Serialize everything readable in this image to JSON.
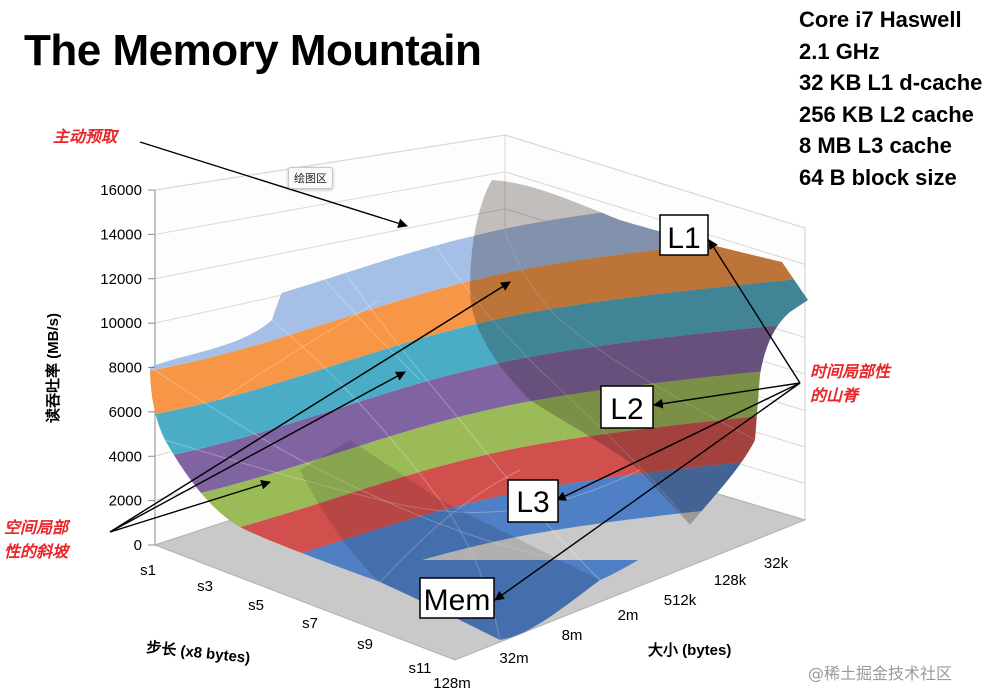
{
  "slide": {
    "title": "The Memory Mountain",
    "specs": [
      "Core i7 Haswell",
      "2.1 GHz",
      "32 KB L1 d-cache",
      "256 KB L2 cache",
      "8 MB L3 cache",
      "64 B block size"
    ],
    "tooltip": "绘图区",
    "watermark": "@稀土掘金技术社区"
  },
  "chart_data": {
    "type": "surface-3d",
    "title": "",
    "ylabel": "读吞吐率 (MB/s)",
    "xlabel": "步长 (x8 bytes)",
    "zlabel": "大小 (bytes)",
    "ylim": [
      0,
      16000
    ],
    "yticks": [
      0,
      2000,
      4000,
      6000,
      8000,
      10000,
      12000,
      14000,
      16000
    ],
    "stride_ticks": [
      "s1",
      "s3",
      "s5",
      "s7",
      "s9",
      "s11"
    ],
    "size_ticks": [
      "32k",
      "128k",
      "512k",
      "2m",
      "8m",
      "32m",
      "128m"
    ],
    "bands": [
      "#4f7fc4",
      "#d1504e",
      "#9bbb59",
      "#8064a2",
      "#4bacc6",
      "#f79646",
      "#a5bfe6"
    ],
    "annotations": {
      "prefetch": "主动预取",
      "temporal": [
        "时间局部性",
        "的山脊"
      ],
      "spatial": [
        "空间局部",
        "性的斜坡"
      ]
    },
    "levels": [
      "L1",
      "L2",
      "L3",
      "Mem"
    ]
  }
}
